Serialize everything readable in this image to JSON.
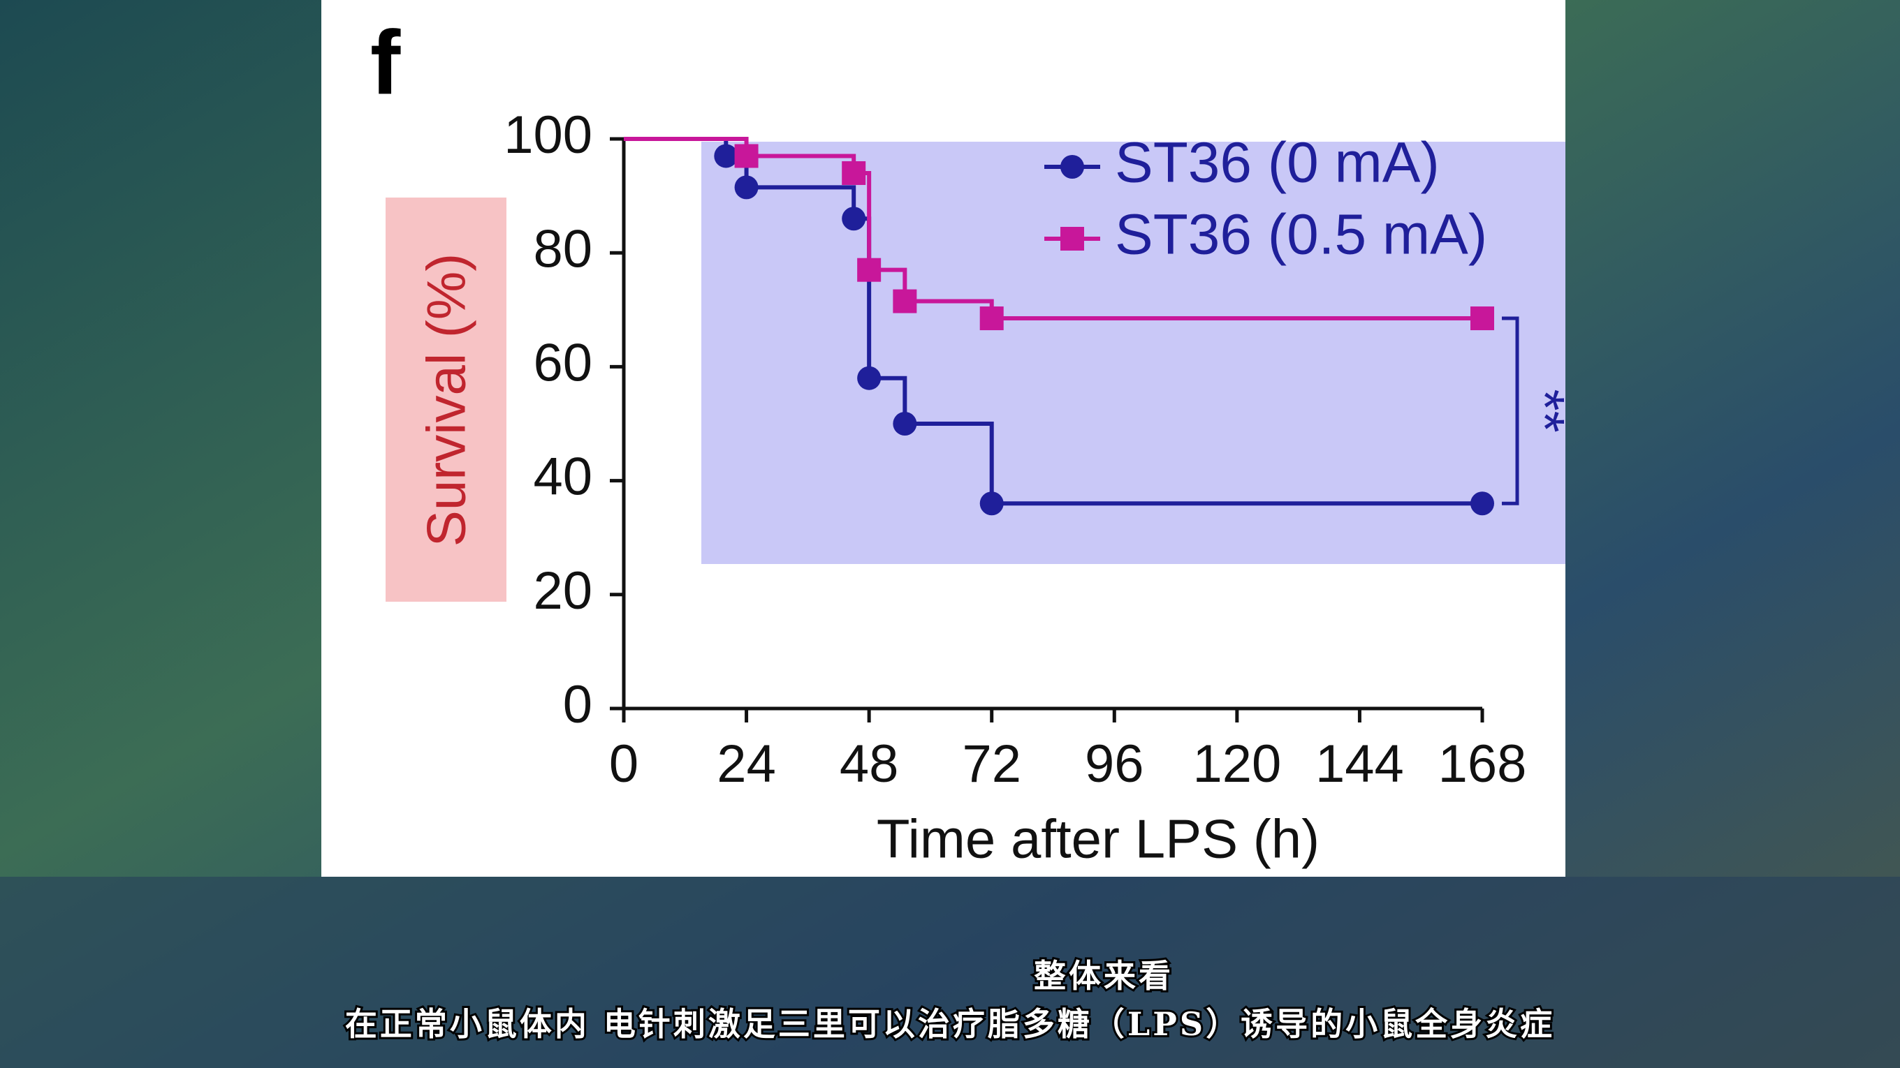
{
  "chart_data": {
    "type": "line",
    "panel_label": "f",
    "x_label": "Time after LPS (h)",
    "y_label": "Survival (%)",
    "series": [
      {
        "name": "ST36 (0 mA)",
        "color": "#1f1f9a",
        "marker": "circle",
        "x": [
          0,
          20,
          24,
          45,
          48,
          55,
          72,
          168
        ],
        "values": [
          100,
          97,
          91.5,
          86,
          58,
          50,
          36,
          36
        ]
      },
      {
        "name": "ST36 (0.5 mA)",
        "color": "#c8179a",
        "marker": "square",
        "x": [
          0,
          24,
          45,
          48,
          55,
          72,
          168
        ],
        "values": [
          100,
          97,
          94,
          77,
          71.5,
          68.5,
          68.5
        ]
      }
    ],
    "annotation": "**",
    "xlim": [
      0,
      168
    ],
    "xticks": [
      0,
      24,
      48,
      72,
      96,
      120,
      144,
      168
    ],
    "ylim": [
      0,
      100
    ],
    "yticks": [
      0,
      20,
      40,
      60,
      80,
      100
    ]
  },
  "caption": [
    "整体来看",
    "在正常小鼠体内 电针刺激足三里可以治疗脂多糖（LPS）诱导的小鼠全身炎症"
  ]
}
